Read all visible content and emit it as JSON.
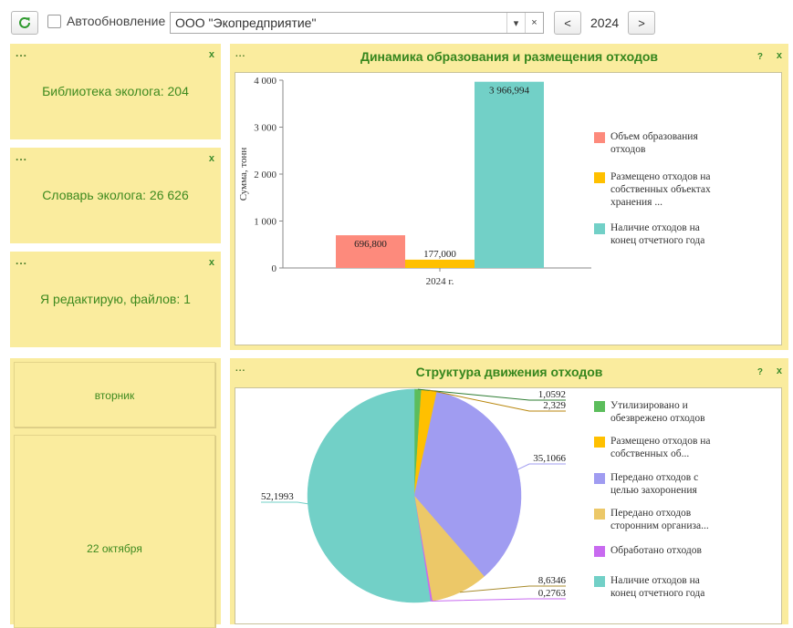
{
  "toolbar": {
    "autoupdate_label": "Автообновление",
    "organization": "ООО \"Экопредприятие\"",
    "year": "2024",
    "prev_label": "<",
    "next_label": ">",
    "dropdown_glyph": "▾",
    "clear_glyph": "×"
  },
  "panel_common": {
    "dots": "...",
    "close": "x",
    "help": "?"
  },
  "info_panels": [
    {
      "text": "Библиотека эколога: 204"
    },
    {
      "text": "Словарь эколога: 26 626"
    },
    {
      "text": "Я редактирую, файлов: 1"
    }
  ],
  "calendar": {
    "weekday": "вторник",
    "date": "22 октября"
  },
  "icons": {
    "refresh": "refresh-icon",
    "dropdown": "chevron-down-icon",
    "clear": "close-icon"
  },
  "colors": {
    "accent_green": "#36861d",
    "panel_yellow": "#faec9e"
  },
  "bar_chart": {
    "title": "Динамика образования и размещения отходов"
  },
  "chart_data": [
    {
      "type": "bar",
      "title": "Динамика образования и размещения отходов",
      "ylabel": "Сумма, тонн",
      "xlabel": "",
      "categories": [
        "2024 г."
      ],
      "ylim": [
        0,
        4000
      ],
      "yticks": [
        "0",
        "1 000",
        "2 000",
        "3 000",
        "4 000"
      ],
      "grid": false,
      "legend_position": "right",
      "series": [
        {
          "name": "Объем образования отходов",
          "values": [
            696.8
          ],
          "label": "696,800",
          "color": "#fd8a7c"
        },
        {
          "name": "Размещено отходов на собственных объектах хранения ...",
          "values": [
            177.0
          ],
          "label": "177,000",
          "color": "#ffc000"
        },
        {
          "name": "Наличие отходов на конец отчетного года",
          "values": [
            3966.994
          ],
          "label": "3 966,994",
          "color": "#72d0c7"
        }
      ]
    },
    {
      "type": "pie",
      "title": "Структура движения отходов",
      "legend_position": "right",
      "slices": [
        {
          "name": "Утилизировано и обезврежено отходов",
          "value": 1.0592,
          "label": "1,0592",
          "color": "#5cbd5c"
        },
        {
          "name": "Размещено отходов на собственных об...",
          "value": 2.329,
          "label": "2,329",
          "color": "#ffc000"
        },
        {
          "name": "Передано отходов с целью захоронения",
          "value": 35.1066,
          "label": "35,1066",
          "color": "#a09cf1"
        },
        {
          "name": "Передано отходов сторонним организа...",
          "value": 8.6346,
          "label": "8,6346",
          "color": "#ecc868"
        },
        {
          "name": "Обработано отходов",
          "value": 0.2763,
          "label": "0,2763",
          "color": "#c86af0"
        },
        {
          "name": "Наличие отходов на конец отчетного года",
          "value": 52.1993,
          "label": "52,1993",
          "color": "#72d0c7"
        }
      ]
    }
  ]
}
